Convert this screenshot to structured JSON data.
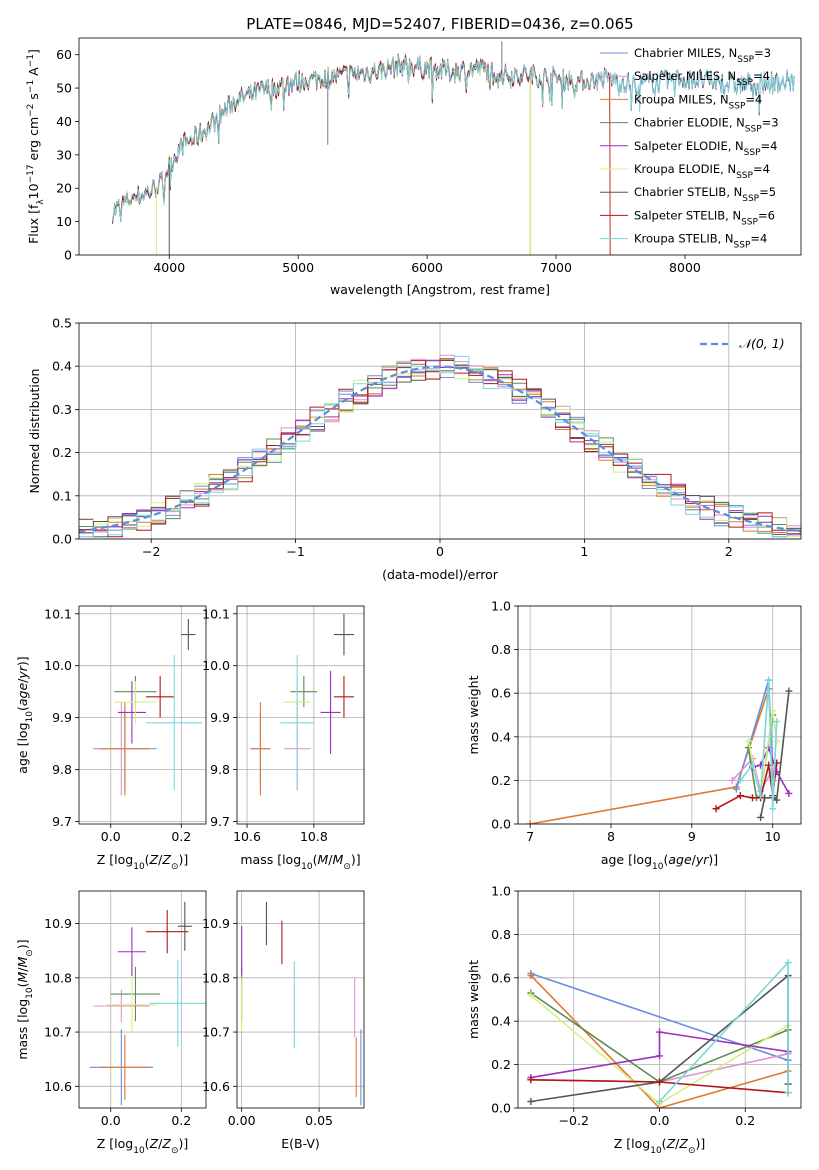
{
  "figure": {
    "title": "PLATE=0846, MJD=52407, FIBERID=0436, z=0.065"
  },
  "colors": {
    "chabrier_miles": "#6a8fdc",
    "salpeter_miles": "#e48fd0",
    "kroupa_miles": "#e0782e",
    "chabrier_elodie": "#5e8a5a",
    "salpeter_elodie": "#9a30c0",
    "kroupa_elodie": "#d7ef7a",
    "chabrier_stelib": "#555555",
    "salpeter_stelib": "#b01818",
    "kroupa_stelib": "#7ad8dc",
    "normal": "#5b8ddc"
  },
  "chart_data": [
    {
      "id": "spectrum",
      "type": "line",
      "xlabel": "wavelength [Angstrom, rest frame]",
      "ylabel": "Flux [f_λ 10^-17 erg cm^-2 s^-1 A^-1]",
      "xlim": [
        3300,
        8900
      ],
      "ylim": [
        0,
        65
      ],
      "xticks": [
        4000,
        5000,
        6000,
        7000,
        8000
      ],
      "yticks": [
        0,
        10,
        20,
        30,
        40,
        50,
        60
      ],
      "legend_position": "right",
      "grid": false,
      "legend": [
        {
          "key": "chabrier_miles",
          "label": "Chabrier MILES, N",
          "sub": "SSP",
          "val": "=3"
        },
        {
          "key": "salpeter_miles",
          "label": "Salpeter MILES, N",
          "sub": "SSP",
          "val": "=4"
        },
        {
          "key": "kroupa_miles",
          "label": "Kroupa MILES, N",
          "sub": "SSP",
          "val": "=4"
        },
        {
          "key": "chabrier_elodie",
          "label": "Chabrier ELODIE, N",
          "sub": "SSP",
          "val": "=3"
        },
        {
          "key": "salpeter_elodie",
          "label": "Salpeter ELODIE, N",
          "sub": "SSP",
          "val": "=4"
        },
        {
          "key": "kroupa_elodie",
          "label": "Kroupa ELODIE, N",
          "sub": "SSP",
          "val": "=4"
        },
        {
          "key": "chabrier_stelib",
          "label": "Chabrier STELIB, N",
          "sub": "SSP",
          "val": "=5"
        },
        {
          "key": "salpeter_stelib",
          "label": "Salpeter STELIB, N",
          "sub": "SSP",
          "val": "=6"
        },
        {
          "key": "kroupa_stelib",
          "label": "Kroupa STELIB, N",
          "sub": "SSP",
          "val": "=4"
        }
      ],
      "continuum": {
        "x": [
          3560,
          3700,
          3850,
          3950,
          4000,
          4100,
          4200,
          4300,
          4400,
          4500,
          4700,
          4900,
          5000,
          5200,
          5400,
          5600,
          5800,
          6000,
          6200,
          6400,
          6600,
          6800,
          7000,
          7200,
          7400,
          7600,
          8000,
          8400,
          8800
        ],
        "y": [
          13,
          17,
          19,
          22,
          27,
          33,
          35,
          38,
          42,
          46,
          49,
          51,
          52,
          53,
          54,
          55,
          57,
          56,
          55,
          56,
          54,
          54,
          53,
          52,
          53,
          51,
          53,
          51,
          52
        ]
      }
    },
    {
      "id": "residuals",
      "type": "bar",
      "xlabel": "(data-model)/error",
      "ylabel": "Normed distribution",
      "xlim": [
        -2.5,
        2.5
      ],
      "ylim": [
        0,
        0.5
      ],
      "xticks": [
        -2,
        -1,
        0,
        1,
        2
      ],
      "yticks": [
        0.0,
        0.1,
        0.2,
        0.3,
        0.4,
        0.5
      ],
      "grid": true,
      "legend": {
        "label": "𝒩(0, 1)",
        "position": "top-right"
      }
    },
    {
      "id": "age_vs_z",
      "type": "scatter",
      "xlabel": "Z [log10(Z/Z⊙)]",
      "ylabel": "age [log10(age/yr)]",
      "xlim": [
        -0.09,
        0.27
      ],
      "ylim": [
        9.695,
        10.115
      ],
      "xticks": [
        0.0,
        0.2
      ],
      "yticks": [
        9.7,
        9.8,
        9.9,
        10.0,
        10.1
      ],
      "grid": true,
      "points": [
        {
          "key": "chabrier_miles",
          "x": 0.04,
          "y": 9.84,
          "xerr": 0.09,
          "yerr": 0.08
        },
        {
          "key": "salpeter_miles",
          "x": 0.03,
          "y": 9.84,
          "xerr": 0.08,
          "yerr": 0.09
        },
        {
          "key": "kroupa_miles",
          "x": 0.04,
          "y": 9.84,
          "xerr": 0.07,
          "yerr": 0.09
        },
        {
          "key": "chabrier_elodie",
          "x": 0.07,
          "y": 9.95,
          "xerr": 0.06,
          "yerr": 0.03
        },
        {
          "key": "salpeter_elodie",
          "x": 0.06,
          "y": 9.91,
          "xerr": 0.04,
          "yerr": 0.06
        },
        {
          "key": "kroupa_elodie",
          "x": 0.07,
          "y": 9.93,
          "xerr": 0.06,
          "yerr": 0.04
        },
        {
          "key": "chabrier_stelib",
          "x": 0.22,
          "y": 10.06,
          "xerr": 0.02,
          "yerr": 0.03
        },
        {
          "key": "salpeter_stelib",
          "x": 0.14,
          "y": 9.94,
          "xerr": 0.04,
          "yerr": 0.04
        },
        {
          "key": "kroupa_stelib",
          "x": 0.18,
          "y": 9.89,
          "xerr": 0.08,
          "yerr": 0.13
        }
      ]
    },
    {
      "id": "age_vs_mass",
      "type": "scatter",
      "xlabel": "mass [log10(M/M⊙)]",
      "ylabel": "",
      "xlim": [
        10.57,
        10.95
      ],
      "ylim": [
        9.695,
        10.115
      ],
      "xticks": [
        10.6,
        10.8
      ],
      "yticks": [
        9.7,
        9.8,
        9.9,
        10.0,
        10.1
      ],
      "grid": true,
      "points": [
        {
          "key": "chabrier_miles",
          "x": 10.64,
          "y": 9.84,
          "xerr": 0.03,
          "yerr": 0.07
        },
        {
          "key": "salpeter_miles",
          "x": 10.75,
          "y": 9.84,
          "xerr": 0.04,
          "yerr": 0.08
        },
        {
          "key": "kroupa_miles",
          "x": 10.64,
          "y": 9.84,
          "xerr": 0.03,
          "yerr": 0.09
        },
        {
          "key": "chabrier_elodie",
          "x": 10.77,
          "y": 9.95,
          "xerr": 0.04,
          "yerr": 0.03
        },
        {
          "key": "salpeter_elodie",
          "x": 10.85,
          "y": 9.91,
          "xerr": 0.03,
          "yerr": 0.08
        },
        {
          "key": "kroupa_elodie",
          "x": 10.75,
          "y": 9.93,
          "xerr": 0.04,
          "yerr": 0.04
        },
        {
          "key": "chabrier_stelib",
          "x": 10.89,
          "y": 10.06,
          "xerr": 0.03,
          "yerr": 0.04
        },
        {
          "key": "salpeter_stelib",
          "x": 10.89,
          "y": 9.94,
          "xerr": 0.03,
          "yerr": 0.04
        },
        {
          "key": "kroupa_stelib",
          "x": 10.75,
          "y": 9.89,
          "xerr": 0.05,
          "yerr": 0.13
        }
      ]
    },
    {
      "id": "weight_vs_age",
      "type": "line",
      "xlabel": "age [log10(age/yr)]",
      "ylabel": "mass weight",
      "xlim": [
        6.85,
        10.35
      ],
      "ylim": [
        0,
        1
      ],
      "xticks": [
        7,
        8,
        9,
        10
      ],
      "yticks": [
        0.0,
        0.2,
        0.4,
        0.6,
        0.8,
        1.0
      ],
      "grid": true,
      "series": [
        {
          "key": "kroupa_miles",
          "x": [
            7.0,
            9.55,
            9.95,
            10.0
          ],
          "y": [
            0.0,
            0.17,
            0.62,
            0.22
          ]
        },
        {
          "key": "chabrier_miles",
          "x": [
            9.55,
            9.95,
            10.0
          ],
          "y": [
            0.16,
            0.66,
            0.22
          ]
        },
        {
          "key": "salpeter_miles",
          "x": [
            9.5,
            9.75,
            9.85,
            10.0
          ],
          "y": [
            0.2,
            0.3,
            0.15,
            0.25
          ]
        },
        {
          "key": "chabrier_elodie",
          "x": [
            9.7,
            9.8,
            9.85,
            10.0
          ],
          "y": [
            0.35,
            0.12,
            0.13,
            0.5
          ]
        },
        {
          "key": "salpeter_elodie",
          "x": [
            9.75,
            9.85,
            9.95,
            10.05,
            10.2
          ],
          "y": [
            0.26,
            0.27,
            0.35,
            0.24,
            0.14
          ]
        },
        {
          "key": "kroupa_elodie",
          "x": [
            9.7,
            9.85,
            10.0,
            10.05
          ],
          "y": [
            0.38,
            0.12,
            0.52,
            0.38
          ]
        },
        {
          "key": "chabrier_stelib",
          "x": [
            9.85,
            9.9,
            10.0,
            10.05,
            10.2
          ],
          "y": [
            0.03,
            0.12,
            0.12,
            0.11,
            0.61
          ]
        },
        {
          "key": "salpeter_stelib",
          "x": [
            9.3,
            9.6,
            9.75,
            9.85,
            9.95,
            10.0,
            10.05
          ],
          "y": [
            0.07,
            0.13,
            0.12,
            0.12,
            0.27,
            0.13,
            0.28
          ]
        },
        {
          "key": "kroupa_stelib",
          "x": [
            9.6,
            9.75,
            9.85,
            9.95,
            10.0,
            10.05
          ],
          "y": [
            0.2,
            0.27,
            0.13,
            0.66,
            0.07,
            0.47
          ]
        }
      ]
    },
    {
      "id": "mass_vs_z",
      "type": "scatter",
      "xlabel": "Z [log10(Z/Z⊙)]",
      "ylabel": "mass [log10(M/M⊙)]",
      "xlim": [
        -0.09,
        0.27
      ],
      "ylim": [
        10.56,
        10.96
      ],
      "xticks": [
        0.0,
        0.2
      ],
      "yticks": [
        10.6,
        10.7,
        10.8,
        10.9
      ],
      "grid": true,
      "points": [
        {
          "key": "chabrier_miles",
          "x": 0.03,
          "y": 10.635,
          "xerr": 0.09,
          "yerr": 0.07
        },
        {
          "key": "salpeter_miles",
          "x": 0.03,
          "y": 10.748,
          "xerr": 0.08,
          "yerr": 0.03
        },
        {
          "key": "kroupa_miles",
          "x": 0.04,
          "y": 10.635,
          "xerr": 0.07,
          "yerr": 0.06
        },
        {
          "key": "chabrier_elodie",
          "x": 0.07,
          "y": 10.77,
          "xerr": 0.07,
          "yerr": 0.05
        },
        {
          "key": "salpeter_elodie",
          "x": 0.06,
          "y": 10.848,
          "xerr": 0.04,
          "yerr": 0.045
        },
        {
          "key": "kroupa_elodie",
          "x": 0.06,
          "y": 10.75,
          "xerr": 0.07,
          "yerr": 0.05
        },
        {
          "key": "chabrier_stelib",
          "x": 0.21,
          "y": 10.895,
          "xerr": 0.02,
          "yerr": 0.045
        },
        {
          "key": "salpeter_stelib",
          "x": 0.16,
          "y": 10.885,
          "xerr": 0.06,
          "yerr": 0.04
        },
        {
          "key": "kroupa_stelib",
          "x": 0.19,
          "y": 10.753,
          "xerr": 0.08,
          "yerr": 0.08
        }
      ]
    },
    {
      "id": "mass_vs_ebv",
      "type": "scatter",
      "xlabel": "E(B-V)",
      "ylabel": "",
      "xlim": [
        -0.003,
        0.079
      ],
      "ylim": [
        10.56,
        10.96
      ],
      "xticks": [
        0.0,
        0.05
      ],
      "yticks": [
        10.6,
        10.7,
        10.8,
        10.9
      ],
      "grid": true,
      "points": [
        {
          "key": "chabrier_miles",
          "x": 0.077,
          "y": 10.635,
          "xerr": 0,
          "yerr": 0.07
        },
        {
          "key": "salpeter_miles",
          "x": 0.073,
          "y": 10.745,
          "xerr": 0,
          "yerr": 0.055
        },
        {
          "key": "kroupa_miles",
          "x": 0.074,
          "y": 10.635,
          "xerr": 0,
          "yerr": 0.055
        },
        {
          "key": "chabrier_elodie",
          "x": 0.0,
          "y": 10.77,
          "xerr": 0,
          "yerr": 0.05
        },
        {
          "key": "salpeter_elodie",
          "x": 0.0,
          "y": 10.85,
          "xerr": 0,
          "yerr": 0.045
        },
        {
          "key": "kroupa_elodie",
          "x": 0.0,
          "y": 10.75,
          "xerr": 0,
          "yerr": 0.05
        },
        {
          "key": "chabrier_stelib",
          "x": 0.016,
          "y": 10.9,
          "xerr": 0,
          "yerr": 0.04
        },
        {
          "key": "salpeter_stelib",
          "x": 0.026,
          "y": 10.865,
          "xerr": 0,
          "yerr": 0.04
        },
        {
          "key": "kroupa_stelib",
          "x": 0.034,
          "y": 10.75,
          "xerr": 0,
          "yerr": 0.08
        }
      ]
    },
    {
      "id": "weight_vs_z",
      "type": "line",
      "xlabel": "Z [log10(Z/Z⊙)]",
      "ylabel": "mass weight",
      "xlim": [
        -0.33,
        0.33
      ],
      "ylim": [
        0,
        1
      ],
      "xticks": [
        -0.2,
        0.0,
        0.2
      ],
      "yticks": [
        0.0,
        0.2,
        0.4,
        0.6,
        0.8,
        1.0
      ],
      "grid": true,
      "series": [
        {
          "key": "chabrier_miles",
          "x": [
            -0.3,
            0.3
          ],
          "y": [
            0.62,
            0.22
          ]
        },
        {
          "key": "kroupa_miles",
          "x": [
            -0.3,
            0.0,
            0.3
          ],
          "y": [
            0.61,
            0.0,
            0.17
          ]
        },
        {
          "key": "salpeter_miles",
          "x": [
            -0.3,
            0.0,
            0.3
          ],
          "y": [
            0.13,
            0.12,
            0.25
          ]
        },
        {
          "key": "chabrier_elodie",
          "x": [
            -0.3,
            0.0,
            0.3
          ],
          "y": [
            0.53,
            0.12,
            0.36
          ]
        },
        {
          "key": "kroupa_elodie",
          "x": [
            -0.3,
            0.0,
            0.3
          ],
          "y": [
            0.52,
            0.02,
            0.38
          ]
        },
        {
          "key": "salpeter_elodie",
          "x": [
            -0.3,
            0.0,
            0.0,
            0.3
          ],
          "y": [
            0.14,
            0.24,
            0.35,
            0.26
          ]
        },
        {
          "key": "chabrier_stelib",
          "x": [
            -0.3,
            0.0,
            0.3,
            0.3
          ],
          "y": [
            0.03,
            0.12,
            0.61,
            0.11
          ]
        },
        {
          "key": "salpeter_stelib",
          "x": [
            -0.3,
            0.0,
            0.3
          ],
          "y": [
            0.13,
            0.12,
            0.07
          ]
        },
        {
          "key": "kroupa_stelib",
          "x": [
            0.0,
            0.3,
            0.3
          ],
          "y": [
            0.03,
            0.67,
            0.07
          ]
        }
      ]
    }
  ]
}
